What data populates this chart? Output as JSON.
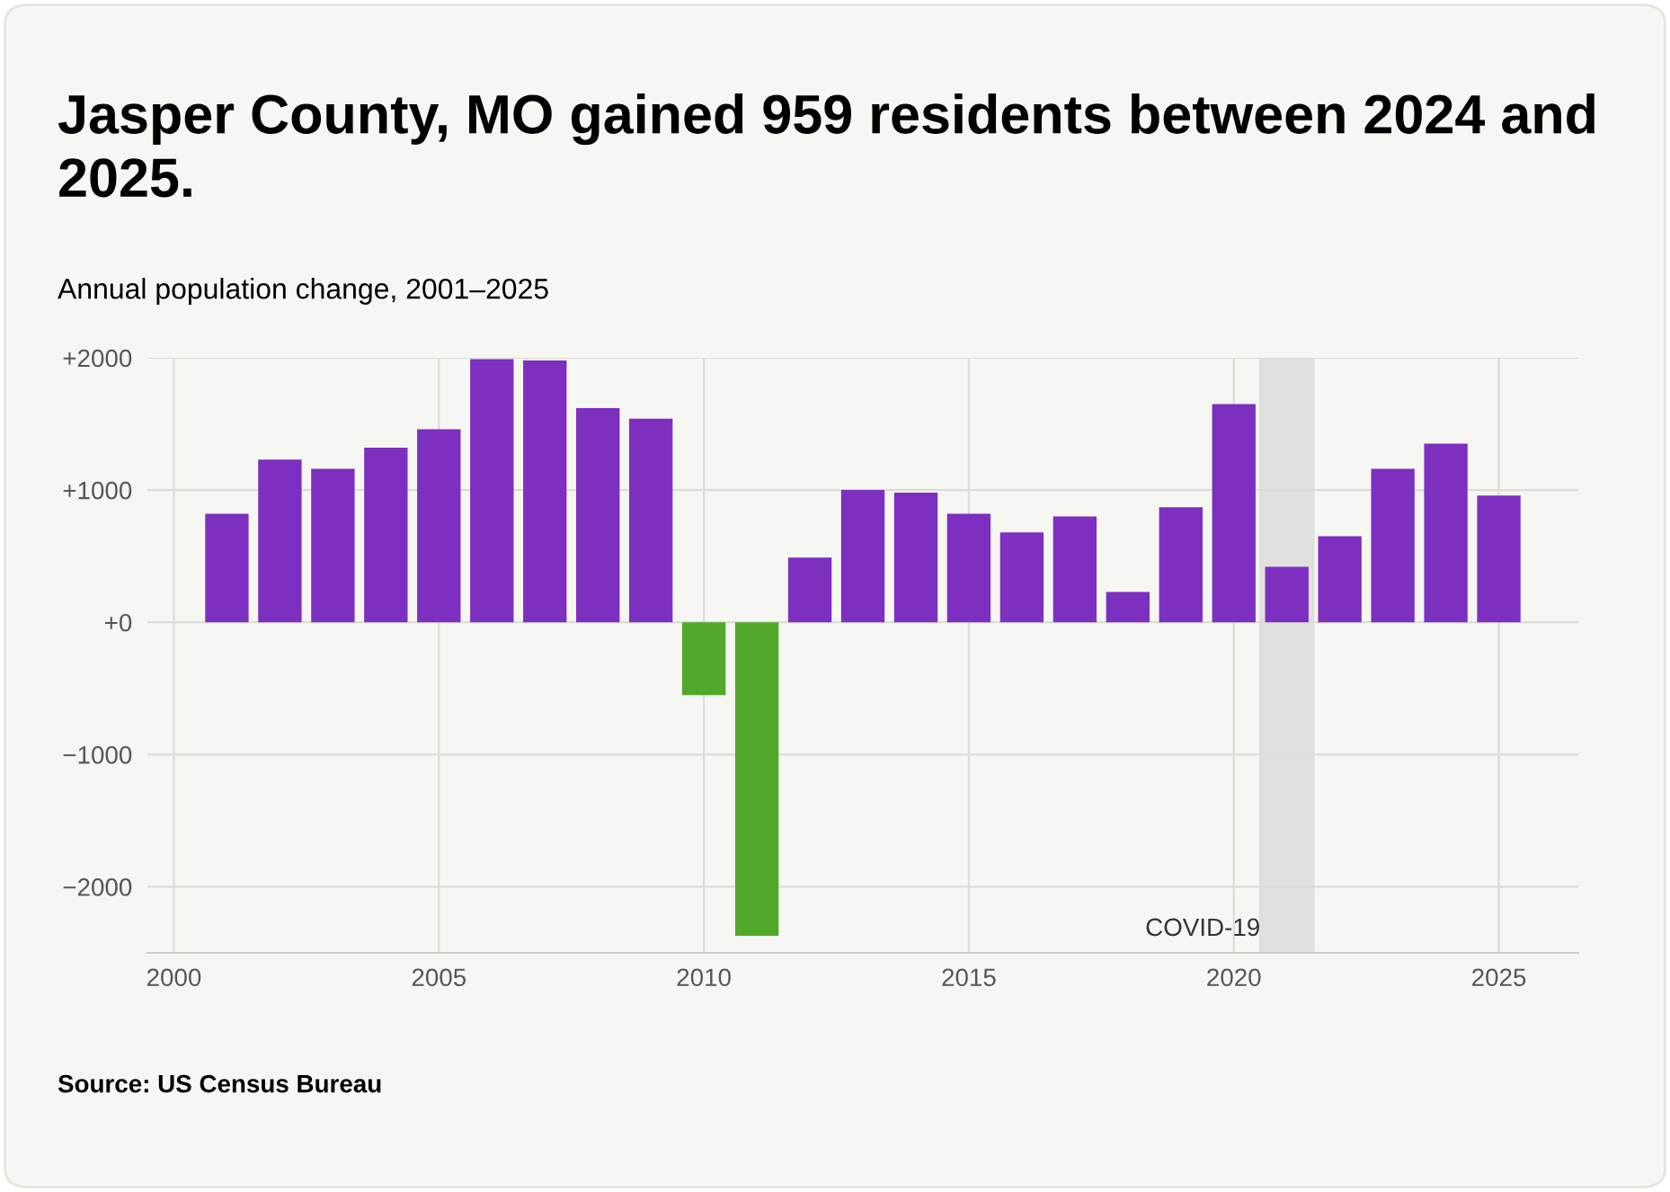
{
  "chart_data": {
    "type": "bar",
    "title": "Jasper County, MO gained 959 residents between 2024 and 2025.",
    "subtitle": "Annual population change, 2001–2025",
    "x": [
      2001,
      2002,
      2003,
      2004,
      2005,
      2006,
      2007,
      2008,
      2009,
      2010,
      2011,
      2012,
      2013,
      2014,
      2015,
      2016,
      2017,
      2018,
      2019,
      2020,
      2021,
      2022,
      2023,
      2024,
      2025
    ],
    "values": [
      820,
      1230,
      1160,
      1320,
      1460,
      1990,
      1980,
      1620,
      1540,
      -550,
      -2370,
      490,
      1000,
      980,
      820,
      680,
      800,
      230,
      870,
      1650,
      420,
      650,
      1160,
      1350,
      959
    ],
    "colors": [
      "#7d2fc0",
      "#7d2fc0",
      "#7d2fc0",
      "#7d2fc0",
      "#7d2fc0",
      "#7d2fc0",
      "#7d2fc0",
      "#7d2fc0",
      "#7d2fc0",
      "#52a82a",
      "#52a82a",
      "#7d2fc0",
      "#7d2fc0",
      "#7d2fc0",
      "#7d2fc0",
      "#7d2fc0",
      "#7d2fc0",
      "#7d2fc0",
      "#7d2fc0",
      "#7d2fc0",
      "#7d2fc0",
      "#7d2fc0",
      "#7d2fc0",
      "#7d2fc0",
      "#7d2fc0"
    ],
    "xlim": [
      1999.5,
      2026.5
    ],
    "xticks": [
      2000,
      2005,
      2010,
      2015,
      2020,
      2025
    ],
    "ylim": [
      -2500,
      2000
    ],
    "yticks": [
      {
        "value": 2000,
        "label": "+2000"
      },
      {
        "value": 1000,
        "label": "+1000"
      },
      {
        "value": 0,
        "label": "+0"
      },
      {
        "value": -1000,
        "label": "−1000"
      },
      {
        "value": -2000,
        "label": "−2000"
      }
    ],
    "bands": [
      {
        "axis": "x",
        "from": 2020.5,
        "to": 2021.5,
        "label": "COVID-19",
        "color": "#e0e0dc"
      }
    ],
    "grid": true,
    "annotations": [
      "Source: US Census Bureau"
    ]
  }
}
